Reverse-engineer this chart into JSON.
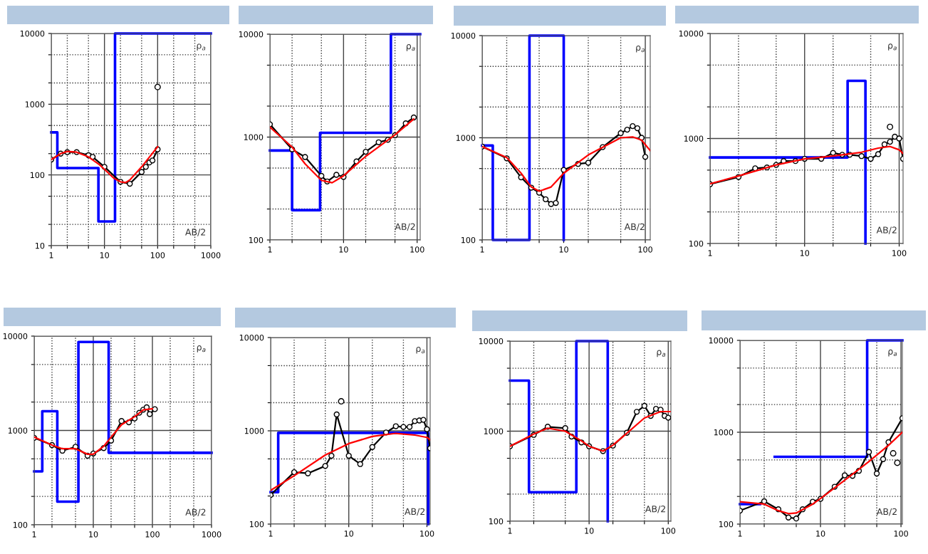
{
  "chart_data": [
    {
      "type": "line",
      "log": "xy",
      "grid": true,
      "xlim": [
        1,
        1000
      ],
      "ylim": [
        10,
        10000
      ],
      "xticks": [
        1,
        {
          "value": 2,
          "label": null
        },
        {
          "value": 5,
          "label": null
        },
        10,
        {
          "value": 20,
          "label": null
        },
        {
          "value": 50,
          "label": null
        },
        100,
        {
          "value": 200,
          "label": null
        },
        {
          "value": 500,
          "label": null
        },
        1000
      ],
      "yticks": [
        10,
        {
          "value": 20,
          "label": null
        },
        {
          "value": 50,
          "label": null
        },
        100,
        {
          "value": 200,
          "label": null
        },
        {
          "value": 500,
          "label": null
        },
        1000,
        {
          "value": 2000,
          "label": null
        },
        {
          "value": 5000,
          "label": null
        },
        10000
      ],
      "annotations": [
        "ρ$_{a}$",
        "AB/2"
      ],
      "series": [
        {
          "type": "step",
          "color": "#0000ff",
          "x": [
            1,
            1.3,
            7.7,
            15.8,
            1000
          ],
          "values": [
            400,
            125,
            22,
            10000,
            10000
          ]
        },
        {
          "type": "line",
          "color": "#000000",
          "marker": "circle",
          "x": [
            1,
            1.5,
            2,
            3,
            5,
            6,
            10,
            20,
            30,
            50,
            60,
            70,
            80,
            100
          ],
          "values": [
            165,
            200,
            210,
            210,
            190,
            180,
            130,
            80,
            75,
            110,
            130,
            150,
            160,
            230
          ]
        },
        {
          "type": "line",
          "color": "#ff0000",
          "x": [
            1,
            1.5,
            2,
            3,
            5,
            8,
            10,
            15,
            20,
            25,
            30,
            50,
            100
          ],
          "values": [
            165,
            200,
            215,
            210,
            180,
            140,
            120,
            90,
            80,
            78,
            85,
            130,
            250
          ]
        },
        {
          "type": "scatter",
          "color": "#000000",
          "marker": "circle",
          "x": [
            100
          ],
          "values": [
            1750
          ]
        }
      ]
    },
    {
      "type": "line",
      "log": "xy",
      "grid": true,
      "xlim": [
        1,
        110
      ],
      "ylim": [
        100,
        10000
      ],
      "xticks": [
        1,
        {
          "value": 2,
          "label": null
        },
        {
          "value": 5,
          "label": null
        },
        10,
        {
          "value": 20,
          "label": null
        },
        {
          "value": 50,
          "label": null
        },
        100
      ],
      "yticks": [
        100,
        {
          "value": 200,
          "label": null
        },
        {
          "value": 500,
          "label": null
        },
        1000,
        {
          "value": 2000,
          "label": null
        },
        {
          "value": 5000,
          "label": null
        },
        10000
      ],
      "annotations": [
        "ρ$_{a}$",
        "AB/2"
      ],
      "series": [
        {
          "type": "step",
          "color": "#0000ff",
          "x": [
            1,
            2,
            4.8,
            44,
            110
          ],
          "values": [
            740,
            195,
            1100,
            10000,
            10000
          ]
        },
        {
          "type": "line",
          "color": "#000000",
          "marker": "circle",
          "x": [
            1,
            2,
            3,
            5,
            6,
            8,
            10,
            15,
            20,
            30,
            40,
            50,
            70,
            90
          ],
          "values": [
            1330,
            760,
            640,
            420,
            370,
            430,
            410,
            580,
            720,
            890,
            940,
            1040,
            1360,
            1550
          ]
        },
        {
          "type": "line",
          "color": "#ff0000",
          "x": [
            1,
            2,
            3,
            5,
            7,
            10,
            20,
            50,
            90
          ],
          "values": [
            1250,
            800,
            550,
            380,
            360,
            420,
            650,
            1050,
            1500
          ]
        }
      ]
    },
    {
      "type": "line",
      "log": "xy",
      "grid": true,
      "xlim": [
        1,
        115
      ],
      "ylim": [
        100,
        10000
      ],
      "xticks": [
        1,
        {
          "value": 2,
          "label": null
        },
        {
          "value": 5,
          "label": null
        },
        10,
        {
          "value": 20,
          "label": null
        },
        {
          "value": 50,
          "label": null
        },
        100
      ],
      "yticks": [
        100,
        {
          "value": 200,
          "label": null
        },
        {
          "value": 500,
          "label": null
        },
        1000,
        {
          "value": 2000,
          "label": null
        },
        {
          "value": 5000,
          "label": null
        },
        10000
      ],
      "annotations": [
        "ρ$_{a}$",
        "AB/2"
      ],
      "series": [
        {
          "type": "step",
          "color": "#0000ff",
          "x": [
            1,
            1.35,
            3.8,
            10
          ],
          "values": [
            840,
            100,
            10000,
            100
          ]
        },
        {
          "type": "line",
          "color": "#000000",
          "marker": "circle",
          "x": [
            1,
            2,
            3,
            4,
            5,
            6,
            7,
            8,
            10,
            15,
            20,
            30,
            50,
            60,
            70,
            80,
            90,
            100
          ],
          "values": [
            820,
            630,
            410,
            325,
            290,
            250,
            225,
            230,
            485,
            555,
            570,
            810,
            1110,
            1200,
            1300,
            1240,
            1000,
            650
          ]
        },
        {
          "type": "line",
          "color": "#ff0000",
          "x": [
            1,
            2,
            3,
            4,
            5,
            7,
            10,
            20,
            50,
            70,
            90,
            115
          ],
          "values": [
            820,
            640,
            450,
            330,
            300,
            330,
            450,
            680,
            1000,
            1020,
            950,
            750
          ]
        }
      ]
    },
    {
      "type": "line",
      "log": "xy",
      "grid": true,
      "xlim": [
        1,
        110
      ],
      "ylim": [
        100,
        10000
      ],
      "xticks": [
        1,
        {
          "value": 2,
          "label": null
        },
        {
          "value": 5,
          "label": null
        },
        10,
        {
          "value": 20,
          "label": null
        },
        {
          "value": 50,
          "label": null
        },
        100
      ],
      "yticks": [
        100,
        {
          "value": 200,
          "label": null
        },
        {
          "value": 500,
          "label": null
        },
        1000,
        {
          "value": 2000,
          "label": null
        },
        {
          "value": 5000,
          "label": null
        },
        10000
      ],
      "annotations": [
        "ρ$_{a}$",
        "AB/2"
      ],
      "series": [
        {
          "type": "step",
          "color": "#0000ff",
          "x": [
            1,
            28.5,
            44
          ],
          "values": [
            660,
            3540,
            100
          ]
        },
        {
          "type": "line",
          "color": "#000000",
          "marker": "circle",
          "x": [
            1,
            2,
            3,
            4,
            5,
            6,
            8,
            10,
            15,
            20,
            25,
            30,
            40,
            50,
            60,
            70,
            80,
            90,
            100,
            110
          ],
          "values": [
            367,
            430,
            520,
            530,
            560,
            610,
            610,
            640,
            640,
            730,
            700,
            700,
            680,
            640,
            710,
            880,
            930,
            1040,
            1000,
            640
          ]
        },
        {
          "type": "line",
          "color": "#ff0000",
          "x": [
            1,
            2,
            5,
            10,
            20,
            40,
            60,
            80,
            100,
            110
          ],
          "values": [
            370,
            440,
            560,
            640,
            680,
            740,
            810,
            840,
            780,
            720
          ]
        },
        {
          "type": "scatter",
          "color": "#000000",
          "marker": "circle",
          "x": [
            80
          ],
          "values": [
            1290
          ]
        }
      ]
    },
    {
      "type": "line",
      "log": "xy",
      "grid": true,
      "xlim": [
        1,
        1000
      ],
      "ylim": [
        100,
        10000
      ],
      "xticks": [
        1,
        {
          "value": 2,
          "label": null
        },
        {
          "value": 5,
          "label": null
        },
        10,
        {
          "value": 20,
          "label": null
        },
        {
          "value": 50,
          "label": null
        },
        100,
        {
          "value": 200,
          "label": null
        },
        {
          "value": 500,
          "label": null
        },
        1000
      ],
      "yticks": [
        100,
        {
          "value": 200,
          "label": null
        },
        {
          "value": 500,
          "label": null
        },
        1000,
        {
          "value": 2000,
          "label": null
        },
        {
          "value": 5000,
          "label": null
        },
        10000
      ],
      "annotations": [
        "ρ$_{a}$",
        "AB/2"
      ],
      "series": [
        {
          "type": "step",
          "color": "#0000ff",
          "x": [
            1,
            1.37,
            2.46,
            5.6,
            18.2,
            1000
          ],
          "values": [
            368,
            1600,
            176,
            8660,
            580,
            580
          ]
        },
        {
          "type": "line",
          "color": "#000000",
          "marker": "circle",
          "x": [
            1,
            2,
            3,
            5,
            8,
            10,
            15,
            20,
            30,
            40,
            50,
            60,
            70,
            80,
            90,
            110
          ],
          "values": [
            835,
            700,
            610,
            670,
            540,
            570,
            650,
            780,
            1260,
            1220,
            1340,
            1540,
            1660,
            1760,
            1490,
            1680
          ]
        },
        {
          "type": "line",
          "color": "#ff0000",
          "x": [
            1,
            2,
            3,
            5,
            8,
            10,
            15,
            20,
            30,
            50,
            70,
            100
          ],
          "values": [
            850,
            700,
            640,
            640,
            560,
            560,
            680,
            850,
            1150,
            1400,
            1650,
            1700
          ]
        }
      ]
    },
    {
      "type": "line",
      "log": "xy",
      "grid": true,
      "xlim": [
        1,
        110
      ],
      "ylim": [
        100,
        10000
      ],
      "xticks": [
        1,
        {
          "value": 2,
          "label": null
        },
        {
          "value": 5,
          "label": null
        },
        10,
        {
          "value": 20,
          "label": null
        },
        {
          "value": 50,
          "label": null
        },
        100
      ],
      "yticks": [
        100,
        {
          "value": 200,
          "label": null
        },
        {
          "value": 500,
          "label": null
        },
        1000,
        {
          "value": 2000,
          "label": null
        },
        {
          "value": 5000,
          "label": null
        },
        10000
      ],
      "annotations": [
        "ρ$_{a}$",
        "AB/2"
      ],
      "series": [
        {
          "type": "step",
          "color": "#0000ff",
          "x": [
            1,
            1.25,
            104
          ],
          "values": [
            220,
            950,
            100
          ]
        },
        {
          "type": "line",
          "color": "#000000",
          "marker": "circle",
          "x": [
            1,
            2,
            3,
            5,
            6,
            7,
            10,
            14,
            20,
            30,
            40,
            50,
            60,
            70,
            80,
            90,
            100,
            110
          ],
          "values": [
            205,
            360,
            350,
            420,
            540,
            1500,
            540,
            440,
            670,
            960,
            1120,
            1100,
            1100,
            1270,
            1290,
            1310,
            1040,
            650
          ]
        },
        {
          "type": "line",
          "color": "#ff0000",
          "x": [
            1,
            2,
            5,
            10,
            20,
            40,
            70,
            100,
            110
          ],
          "values": [
            230,
            330,
            550,
            730,
            870,
            940,
            900,
            850,
            800
          ]
        },
        {
          "type": "scatter",
          "color": "#000000",
          "marker": "circle",
          "x": [
            8
          ],
          "values": [
            2070
          ]
        }
      ]
    },
    {
      "type": "line",
      "log": "xy",
      "grid": true,
      "xlim": [
        1,
        108
      ],
      "ylim": [
        100,
        10000
      ],
      "xticks": [
        1,
        {
          "value": 2,
          "label": null
        },
        {
          "value": 5,
          "label": null
        },
        10,
        {
          "value": 20,
          "label": null
        },
        {
          "value": 50,
          "label": null
        },
        100
      ],
      "yticks": [
        100,
        {
          "value": 200,
          "label": null
        },
        {
          "value": 500,
          "label": null
        },
        1000,
        {
          "value": 2000,
          "label": null
        },
        {
          "value": 5000,
          "label": null
        },
        10000
      ],
      "annotations": [
        "ρ$_{a}$",
        "AB/2"
      ],
      "series": [
        {
          "type": "step",
          "color": "#0000ff",
          "x": [
            1,
            1.74,
            6.9,
            17.2
          ],
          "values": [
            3640,
            210,
            10000,
            100
          ]
        },
        {
          "type": "line",
          "color": "#000000",
          "marker": "circle",
          "x": [
            1,
            2,
            3,
            5,
            6,
            8,
            10,
            15,
            20,
            30,
            40,
            50,
            60,
            70,
            80,
            90,
            100
          ],
          "values": [
            680,
            910,
            1120,
            1080,
            870,
            750,
            680,
            600,
            690,
            960,
            1640,
            1910,
            1480,
            1770,
            1730,
            1480,
            1410
          ]
        },
        {
          "type": "line",
          "color": "#ff0000",
          "x": [
            1,
            2,
            3,
            5,
            8,
            10,
            15,
            20,
            30,
            50,
            80,
            105
          ],
          "values": [
            680,
            930,
            1080,
            1000,
            780,
            680,
            600,
            700,
            950,
            1400,
            1650,
            1650
          ]
        }
      ]
    },
    {
      "type": "line",
      "log": "xy",
      "grid": true,
      "xlim": [
        1,
        104
      ],
      "ylim": [
        100,
        10000
      ],
      "xticks": [
        1,
        {
          "value": 2,
          "label": null
        },
        {
          "value": 5,
          "label": null
        },
        10,
        {
          "value": 20,
          "label": null
        },
        {
          "value": 50,
          "label": null
        },
        100
      ],
      "yticks": [
        100,
        {
          "value": 200,
          "label": null
        },
        {
          "value": 500,
          "label": null
        },
        1000,
        {
          "value": 2000,
          "label": null
        },
        {
          "value": 5000,
          "label": null
        },
        10000
      ],
      "annotations": [
        "ρ$_{a}$",
        "AB/2"
      ],
      "series": [
        {
          "type": "step",
          "color": "#0000ff",
          "x": [
            1,
            1.77,
            2.7,
            38,
            104
          ],
          "values": [
            165,
            null,
            540,
            10000,
            10000
          ]
        },
        {
          "type": "line",
          "color": "#000000",
          "marker": "circle",
          "x": [
            1,
            2,
            3,
            4,
            5,
            6,
            8,
            10,
            15,
            20,
            25,
            30,
            40,
            50,
            60,
            70,
            104
          ],
          "values": [
            140,
            177,
            145,
            118,
            115,
            145,
            175,
            188,
            255,
            340,
            335,
            380,
            610,
            355,
            510,
            780,
            1420
          ]
        },
        {
          "type": "line",
          "color": "#ff0000",
          "x": [
            1,
            2,
            3,
            4,
            5,
            8,
            10,
            20,
            40,
            70,
            104
          ],
          "values": [
            175,
            165,
            140,
            130,
            132,
            165,
            190,
            300,
            480,
            720,
            1000
          ]
        },
        {
          "type": "scatter",
          "color": "#000000",
          "marker": "circle",
          "x": [
            80,
            90
          ],
          "values": [
            590,
            465
          ]
        }
      ]
    }
  ]
}
